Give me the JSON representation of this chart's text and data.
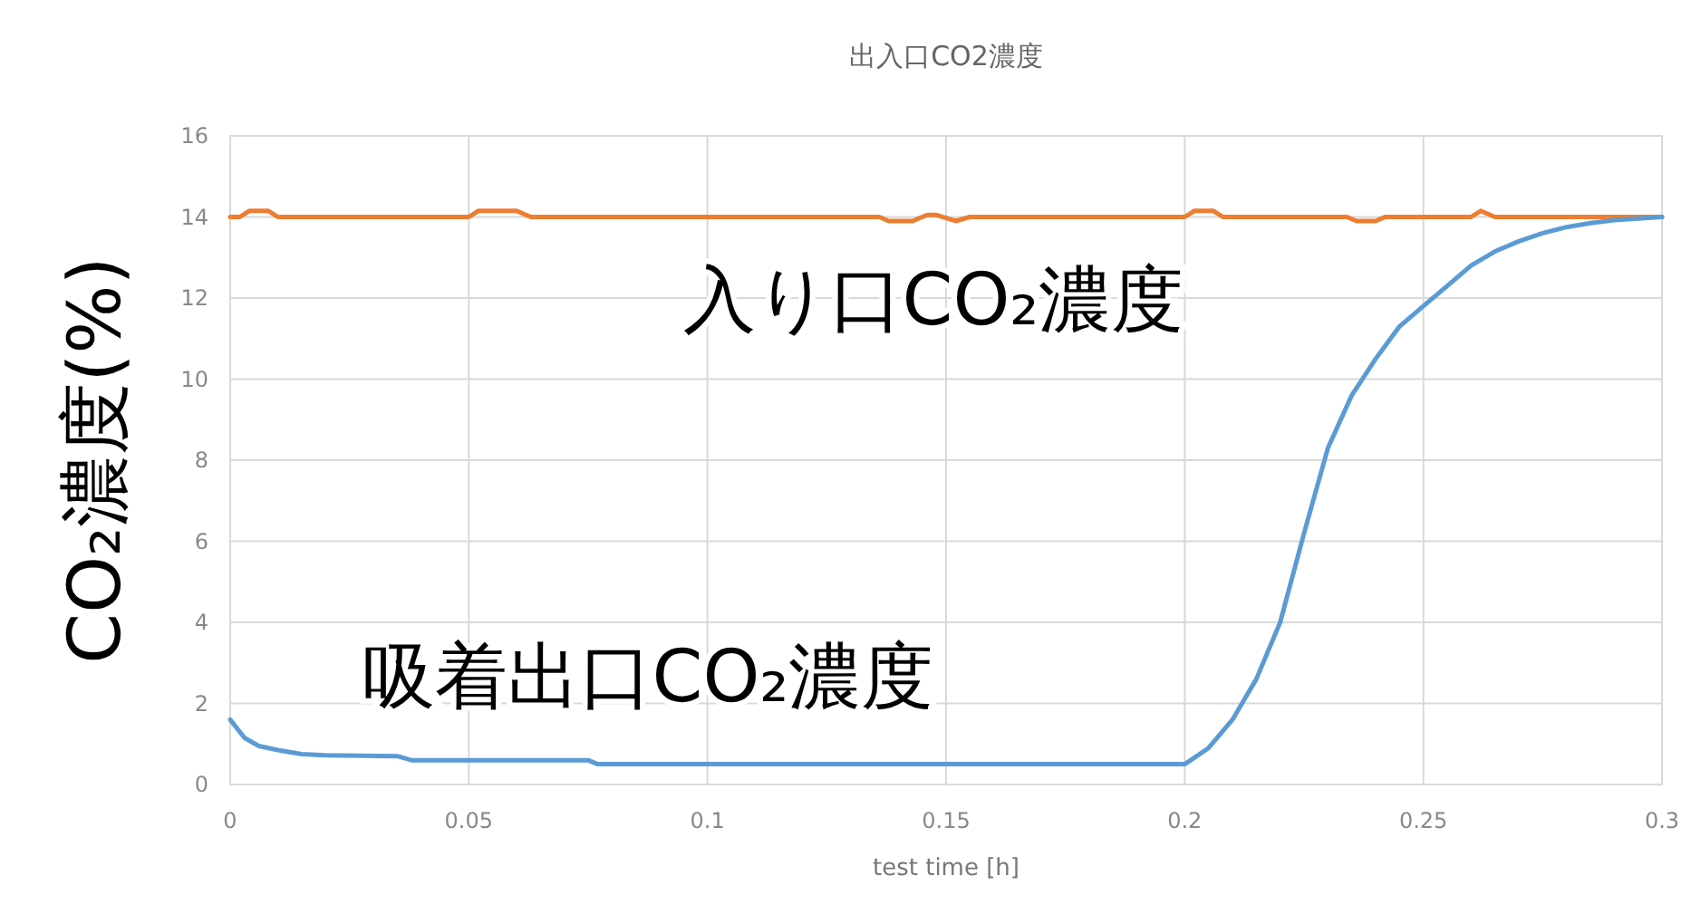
{
  "chart_data": {
    "type": "line",
    "title": "出入口CO2濃度",
    "xlabel": "test time [h]",
    "ylabel": "CO₂濃度(%)",
    "xlim": [
      0,
      0.3
    ],
    "xticks": [
      0,
      0.05,
      0.1,
      0.15,
      0.2,
      0.25,
      0.3
    ],
    "ylim": [
      0,
      16
    ],
    "yticks": [
      0,
      2,
      4,
      6,
      8,
      10,
      12,
      14,
      16
    ],
    "grid": true,
    "series": [
      {
        "name": "入り口CO₂濃度",
        "color": "#ed7d31",
        "x": [
          0,
          0.002,
          0.004,
          0.008,
          0.01,
          0.05,
          0.052,
          0.06,
          0.063,
          0.136,
          0.138,
          0.143,
          0.146,
          0.148,
          0.152,
          0.155,
          0.2,
          0.202,
          0.206,
          0.208,
          0.234,
          0.236,
          0.24,
          0.242,
          0.26,
          0.262,
          0.265,
          0.3
        ],
        "values": [
          14.0,
          14.0,
          14.15,
          14.15,
          14.0,
          14.0,
          14.15,
          14.15,
          14.0,
          14.0,
          13.9,
          13.9,
          14.05,
          14.05,
          13.9,
          14.0,
          14.0,
          14.15,
          14.15,
          14.0,
          14.0,
          13.9,
          13.9,
          14.0,
          14.0,
          14.15,
          14.0,
          14.0
        ]
      },
      {
        "name": "吸着出口CO₂濃度",
        "color": "#5b9bd5",
        "x": [
          0,
          0.003,
          0.006,
          0.01,
          0.015,
          0.02,
          0.035,
          0.038,
          0.075,
          0.077,
          0.2,
          0.205,
          0.21,
          0.215,
          0.22,
          0.225,
          0.23,
          0.235,
          0.24,
          0.245,
          0.25,
          0.255,
          0.26,
          0.265,
          0.27,
          0.275,
          0.28,
          0.285,
          0.29,
          0.3
        ],
        "values": [
          1.6,
          1.15,
          0.95,
          0.85,
          0.75,
          0.72,
          0.7,
          0.6,
          0.6,
          0.5,
          0.5,
          0.9,
          1.6,
          2.6,
          4.0,
          6.2,
          8.3,
          9.6,
          10.5,
          11.3,
          11.8,
          12.3,
          12.8,
          13.15,
          13.4,
          13.6,
          13.75,
          13.85,
          13.92,
          14.0
        ]
      }
    ]
  }
}
